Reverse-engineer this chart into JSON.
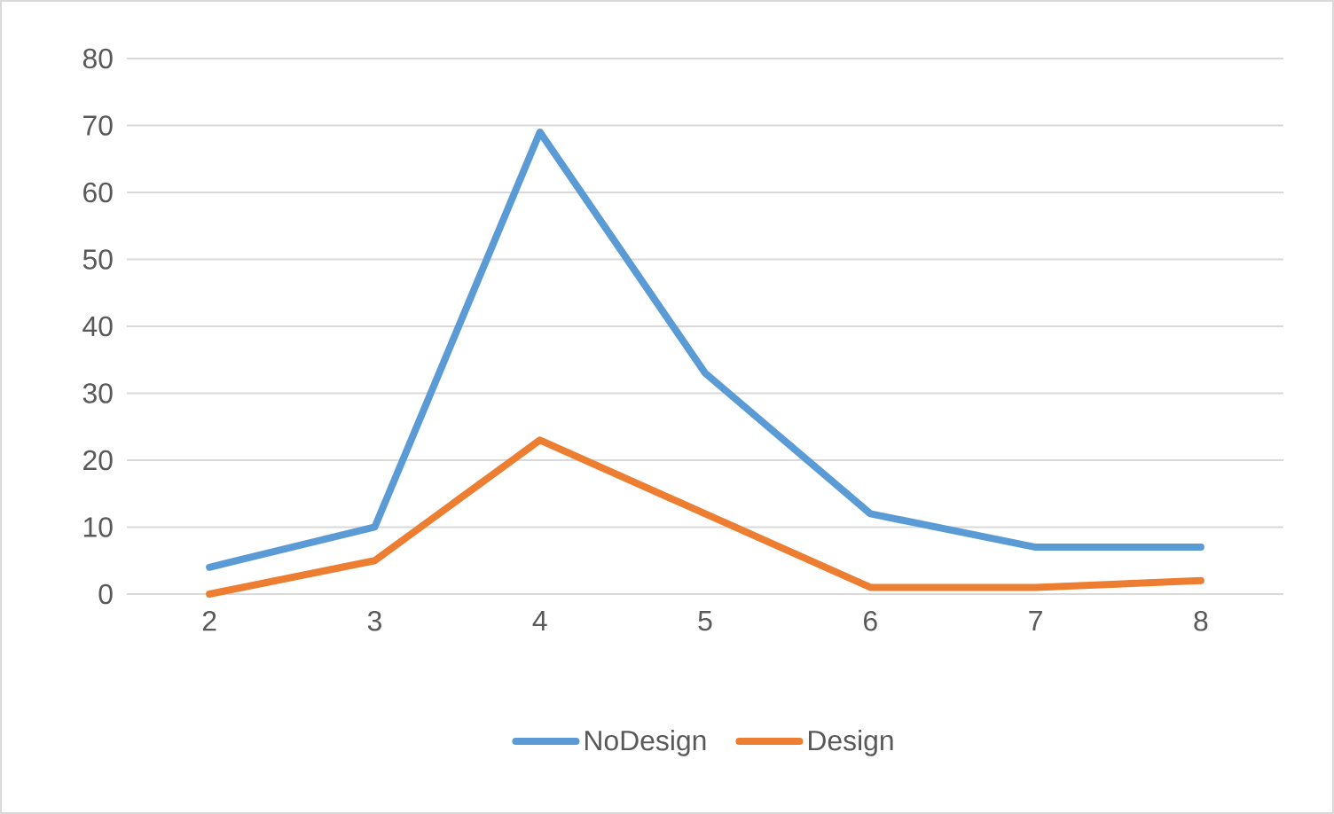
{
  "chart_data": {
    "type": "line",
    "categories": [
      "2",
      "3",
      "4",
      "5",
      "6",
      "7",
      "8"
    ],
    "series": [
      {
        "name": "NoDesign",
        "color": "#5b9bd5",
        "values": [
          4,
          10,
          69,
          33,
          12,
          7,
          7
        ]
      },
      {
        "name": "Design",
        "color": "#ed7d31",
        "values": [
          0,
          5,
          23,
          12,
          1,
          1,
          2
        ]
      }
    ],
    "ylim": [
      0,
      80
    ],
    "yticks": [
      0,
      10,
      20,
      30,
      40,
      50,
      60,
      70,
      80
    ],
    "grid": "y",
    "legend": "bottom",
    "marker": "none",
    "line_style": "solid"
  }
}
